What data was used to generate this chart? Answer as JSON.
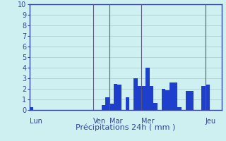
{
  "title": "",
  "xlabel": "Précipitations 24h ( mm )",
  "ylabel": "",
  "ylim": [
    0,
    10
  ],
  "yticks": [
    0,
    1,
    2,
    3,
    4,
    5,
    6,
    7,
    8,
    9,
    10
  ],
  "background_color": "#cff0f0",
  "plot_bg_color": "#cff0f0",
  "bar_color": "#1e3fcc",
  "grid_color": "#a8c8c8",
  "num_bars": 48,
  "bar_values": [
    0.3,
    0.0,
    0.0,
    0.0,
    0.0,
    0.0,
    0.0,
    0.0,
    0.0,
    0.0,
    0.0,
    0.0,
    0.0,
    0.0,
    0.0,
    0.0,
    0.0,
    0.0,
    0.5,
    1.2,
    0.6,
    2.5,
    2.4,
    0.0,
    1.2,
    0.0,
    3.0,
    2.3,
    2.3,
    4.0,
    2.3,
    0.7,
    0.0,
    2.0,
    1.9,
    2.6,
    2.6,
    0.3,
    0.0,
    1.8,
    1.8,
    0.0,
    0.0,
    2.3,
    2.4,
    0.0,
    0.0,
    0.0
  ],
  "day_labels": [
    "Lun",
    "Ven",
    "Mar",
    "Mer",
    "Jeu"
  ],
  "day_positions": [
    0,
    16,
    20,
    28,
    44
  ],
  "vline_positions": [
    16,
    20,
    28,
    44
  ],
  "vline_color": "#555577",
  "spine_color": "#334499",
  "label_color": "#334499",
  "tick_fontsize": 7,
  "xlabel_fontsize": 8
}
